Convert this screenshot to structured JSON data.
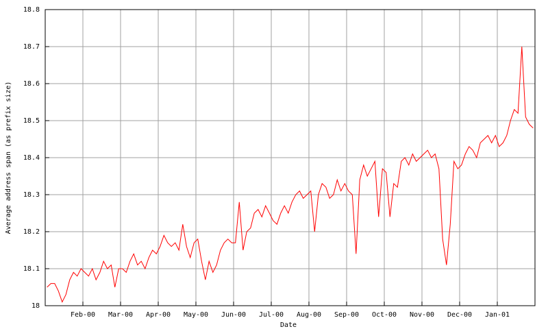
{
  "chart_data": {
    "type": "line",
    "x_label": "Date",
    "y_label": "Average address span (as prefix size)",
    "color": "#ff0000",
    "grid": true,
    "x": [
      "2000-01",
      "2000-02",
      "2000-03",
      "2000-04",
      "2000-05",
      "2000-06",
      "2000-07",
      "2000-08",
      "2000-09",
      "2000-10",
      "2000-11",
      "2000-12",
      "2001-01"
    ],
    "values": [
      [
        18.05,
        18.06,
        18.06,
        18.04,
        18.01,
        18.03,
        18.07,
        18.09,
        18.08,
        18.1
      ],
      [
        18.09,
        18.08,
        18.1,
        18.07,
        18.09,
        18.12,
        18.1,
        18.11,
        18.05,
        18.1
      ],
      [
        18.1,
        18.09,
        18.12,
        18.14,
        18.11,
        18.12,
        18.1,
        18.13,
        18.15,
        18.14
      ],
      [
        18.16,
        18.19,
        18.17,
        18.16,
        18.17,
        18.15,
        18.22,
        18.16,
        18.13,
        18.17
      ],
      [
        18.18,
        18.12,
        18.07,
        18.12,
        18.09,
        18.11,
        18.15,
        18.17,
        18.18,
        18.17
      ],
      [
        18.17,
        18.28,
        18.15,
        18.2,
        18.21,
        18.25,
        18.26,
        18.24,
        18.27,
        18.25
      ],
      [
        18.23,
        18.22,
        18.25,
        18.27,
        18.25,
        18.28,
        18.3,
        18.31,
        18.29,
        18.3
      ],
      [
        18.31,
        18.2,
        18.3,
        18.33,
        18.32,
        18.29,
        18.3,
        18.34,
        18.31,
        18.33
      ],
      [
        18.31,
        18.3,
        18.14,
        18.34,
        18.38,
        18.35,
        18.37,
        18.39,
        18.24,
        18.37
      ],
      [
        18.36,
        18.24,
        18.33,
        18.32,
        18.39,
        18.4,
        18.38,
        18.41,
        18.39,
        18.4
      ],
      [
        18.41,
        18.42,
        18.4,
        18.41,
        18.37,
        18.18,
        18.11,
        18.22,
        18.39,
        18.37
      ],
      [
        18.38,
        18.41,
        18.43,
        18.42,
        18.4,
        18.44,
        18.45,
        18.46,
        18.44,
        18.46
      ],
      [
        18.43,
        18.44,
        18.46,
        18.5,
        18.53,
        18.52,
        18.7,
        18.51,
        18.49,
        18.48
      ]
    ],
    "xlim": [
      "2000-01",
      "2001-02"
    ],
    "xticks": [
      {
        "value": "2000-02",
        "label": "Feb-00"
      },
      {
        "value": "2000-03",
        "label": "Mar-00"
      },
      {
        "value": "2000-04",
        "label": "Apr-00"
      },
      {
        "value": "2000-05",
        "label": "May-00"
      },
      {
        "value": "2000-06",
        "label": "Jun-00"
      },
      {
        "value": "2000-07",
        "label": "Jul-00"
      },
      {
        "value": "2000-08",
        "label": "Aug-00"
      },
      {
        "value": "2000-09",
        "label": "Sep-00"
      },
      {
        "value": "2000-10",
        "label": "Oct-00"
      },
      {
        "value": "2000-11",
        "label": "Nov-00"
      },
      {
        "value": "2000-12",
        "label": "Dec-00"
      },
      {
        "value": "2001-01",
        "label": "Jan-01"
      }
    ],
    "ylim": [
      18,
      18.8
    ],
    "yticks": [
      18,
      18.1,
      18.2,
      18.3,
      18.4,
      18.5,
      18.6,
      18.7,
      18.8
    ]
  }
}
